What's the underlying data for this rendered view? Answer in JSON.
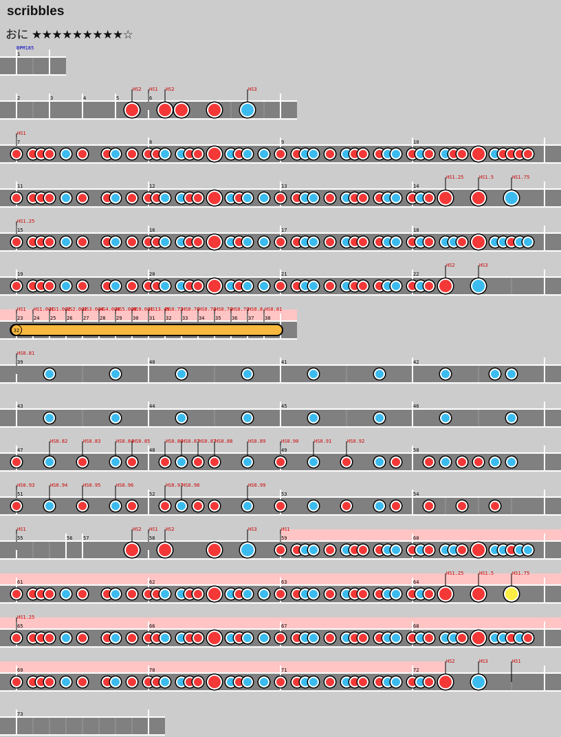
{
  "song": {
    "title": "scribbles",
    "difficulty_label": "おに",
    "stars_filled": 9,
    "stars_total": 10,
    "star_text": "★★★★★★★★★☆"
  },
  "colors": {
    "don": "#f43838",
    "ka": "#3cbcee",
    "roll": "#f8b840",
    "balloon_body": "#ffee44",
    "lane": "#808080",
    "gogo": "#ffc4c4",
    "bpm_text": "#0000c0",
    "hs_text": "#cc0000"
  },
  "bpm_label": "BPM185",
  "roll_count": "32",
  "hs_labels": [
    "HS2",
    "HS1",
    "HS2",
    "HS3",
    "HS1",
    "HS1.25",
    "HS1.5",
    "HS1.75",
    "HS1.25",
    "HS2",
    "HS3",
    "HS1",
    "HS1.001",
    "HS1.002",
    "HS2.002",
    "HS3.004",
    "HS4.006",
    "HS5.008",
    "HS9.001",
    "HS13.45",
    "HS0.75",
    "HS0.76",
    "HS0.76",
    "HS0.78",
    "HS0.79",
    "HS0.8",
    "HS0.81",
    "HS0.81",
    "HS0.82",
    "HS0.83",
    "HS0.84",
    "HS0.85",
    "HS0.86",
    "HS0.87",
    "HS0.87",
    "HS0.88",
    "HS0.89",
    "HS0.90",
    "HS0.91",
    "HS0.92",
    "HS0.93",
    "HS0.94",
    "HS0.95",
    "HS0.96",
    "HS0.97",
    "HS0.98",
    "HS0.99",
    "HS1",
    "HS2",
    "HS1",
    "HS2",
    "HS3",
    "HS1",
    "HS1.25",
    "HS1.5",
    "HS1.75",
    "HS1.25",
    "HS2",
    "HS3",
    "HS1"
  ],
  "measure_numbers": [
    "1",
    "2",
    "3",
    "4",
    "5",
    "6",
    "7",
    "8",
    "9",
    "10",
    "11",
    "12",
    "13",
    "14",
    "15",
    "16",
    "17",
    "18",
    "19",
    "20",
    "21",
    "22",
    "23",
    "24",
    "25",
    "26",
    "27",
    "28",
    "29",
    "30",
    "31",
    "32",
    "33",
    "34",
    "35",
    "36",
    "37",
    "38",
    "39",
    "40",
    "41",
    "42",
    "43",
    "44",
    "45",
    "46",
    "47",
    "48",
    "49",
    "50",
    "51",
    "52",
    "53",
    "54",
    "55",
    "56",
    "57",
    "58",
    "59",
    "60",
    "61",
    "62",
    "63",
    "64",
    "65",
    "66",
    "67",
    "68",
    "69",
    "70",
    "71",
    "72",
    "73"
  ]
}
